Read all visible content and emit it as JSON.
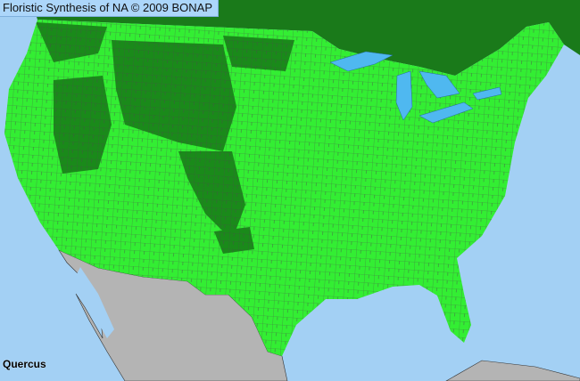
{
  "header": {
    "title": "Floristic Synthesis of NA © 2009 BONAP"
  },
  "map": {
    "taxon": "Quercus",
    "colors": {
      "water": "#a3d0f4",
      "present": "#33ee33",
      "present_other": "#1a8a1a",
      "canada": "#1a7a1a",
      "mexico": "#b4b4b4",
      "county_lines": "#4a4a4a",
      "lakes": "#4fb8f0"
    }
  }
}
